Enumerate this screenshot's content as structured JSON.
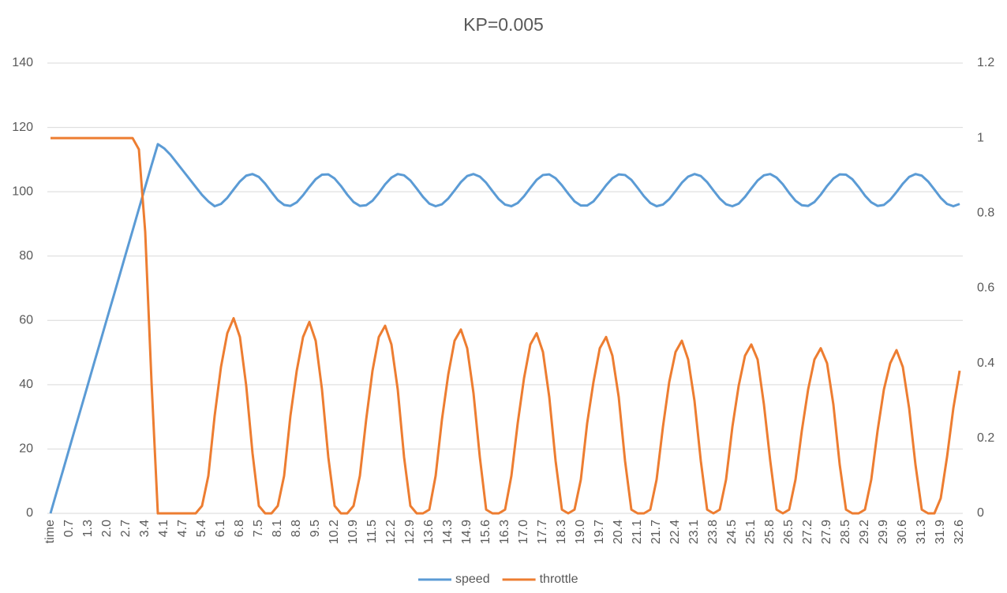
{
  "chart_data": {
    "type": "line",
    "title": "KP=0.005",
    "categories": [
      "time",
      null,
      null,
      "0.7",
      null,
      null,
      "1.3",
      null,
      null,
      "2.0",
      null,
      null,
      "2.7",
      null,
      null,
      "3.4",
      null,
      null,
      "4.1",
      null,
      null,
      "4.7",
      null,
      null,
      "5.4",
      null,
      null,
      "6.1",
      null,
      null,
      "6.8",
      null,
      null,
      "7.5",
      null,
      null,
      "8.1",
      null,
      null,
      "8.8",
      null,
      null,
      "9.5",
      null,
      null,
      "10.2",
      null,
      null,
      "10.9",
      null,
      null,
      "11.5",
      null,
      null,
      "12.2",
      null,
      null,
      "12.9",
      null,
      null,
      "13.6",
      null,
      null,
      "14.3",
      null,
      null,
      "14.9",
      null,
      null,
      "15.6",
      null,
      null,
      "16.3",
      null,
      null,
      "17.0",
      null,
      null,
      "17.7",
      null,
      null,
      "18.3",
      null,
      null,
      "19.0",
      null,
      null,
      "19.7",
      null,
      null,
      "20.4",
      null,
      null,
      "21.1",
      null,
      null,
      "21.7",
      null,
      null,
      "22.4",
      null,
      null,
      "23.1",
      null,
      null,
      "23.8",
      null,
      null,
      "24.5",
      null,
      null,
      "25.1",
      null,
      null,
      "25.8",
      null,
      null,
      "26.5",
      null,
      null,
      "27.2",
      null,
      null,
      "27.9",
      null,
      null,
      "28.5",
      null,
      null,
      "29.2",
      null,
      null,
      "29.9",
      null,
      null,
      "30.6",
      null,
      null,
      "31.3",
      null,
      null,
      "31.9",
      null,
      null,
      "32.6"
    ],
    "series": [
      {
        "name": "speed",
        "color": "#5b9bd5",
        "values": [
          0,
          6.8,
          13.5,
          20.3,
          27.1,
          33.8,
          40.6,
          47.4,
          54.1,
          60.9,
          67.6,
          74.4,
          81.2,
          87.9,
          94.7,
          101.5,
          108.2,
          114.8,
          113.5,
          111.5,
          109,
          106.5,
          104,
          101.5,
          99,
          97,
          95.5,
          96.2,
          98.1,
          100.7,
          103.2,
          105.0,
          105.5,
          104.6,
          102.5,
          99.9,
          97.4,
          95.9,
          95.6,
          96.7,
          98.9,
          101.5,
          103.9,
          105.3,
          105.4,
          104.1,
          101.8,
          99.1,
          96.8,
          95.6,
          95.8,
          97.2,
          99.6,
          102.3,
          104.4,
          105.5,
          105.1,
          103.5,
          101.0,
          98.4,
          96.3,
          95.5,
          96.1,
          97.9,
          100.4,
          103.0,
          104.9,
          105.5,
          104.7,
          102.8,
          100.2,
          97.7,
          96.0,
          95.5,
          96.5,
          98.6,
          101.2,
          103.7,
          105.2,
          105.4,
          104.2,
          102.0,
          99.4,
          97.0,
          95.7,
          95.7,
          97.0,
          99.4,
          102.0,
          104.2,
          105.4,
          105.2,
          103.7,
          101.2,
          98.6,
          96.5,
          95.5,
          96.0,
          97.7,
          100.2,
          102.8,
          104.7,
          105.5,
          104.9,
          103.0,
          100.4,
          97.9,
          96.1,
          95.5,
          96.3,
          98.4,
          101.0,
          103.5,
          105.1,
          105.5,
          104.4,
          102.3,
          99.6,
          97.2,
          95.8,
          95.6,
          96.8,
          99.1,
          101.8,
          104.1,
          105.4,
          105.3,
          103.9,
          101.5,
          98.8,
          96.7,
          95.6,
          95.9,
          97.5,
          99.9,
          102.5,
          104.6,
          105.5,
          105.0,
          103.2,
          100.7,
          98.1,
          96.2,
          95.5,
          96.2
        ]
      },
      {
        "name": "throttle",
        "color": "#ed7d31",
        "axis": "y2",
        "values": [
          1,
          1,
          1,
          1,
          1,
          1,
          1,
          1,
          1,
          1,
          1,
          1,
          1,
          1,
          0.97,
          0.75,
          0.35,
          0,
          0,
          0,
          0,
          0,
          0,
          0,
          0.02,
          0.1,
          0.26,
          0.39,
          0.48,
          0.52,
          0.47,
          0.34,
          0.16,
          0.02,
          0,
          0,
          0.02,
          0.1,
          0.26,
          0.38,
          0.47,
          0.51,
          0.46,
          0.33,
          0.15,
          0.02,
          0,
          0,
          0.02,
          0.1,
          0.25,
          0.38,
          0.47,
          0.5,
          0.45,
          0.33,
          0.15,
          0.02,
          0,
          0,
          0.01,
          0.1,
          0.25,
          0.37,
          0.46,
          0.49,
          0.44,
          0.32,
          0.15,
          0.01,
          0,
          0,
          0.01,
          0.1,
          0.24,
          0.36,
          0.45,
          0.48,
          0.43,
          0.31,
          0.14,
          0.01,
          0,
          0.01,
          0.09,
          0.24,
          0.35,
          0.44,
          0.47,
          0.42,
          0.31,
          0.14,
          0.01,
          0,
          0,
          0.01,
          0.09,
          0.23,
          0.35,
          0.43,
          0.46,
          0.41,
          0.3,
          0.14,
          0.01,
          0,
          0.01,
          0.09,
          0.23,
          0.34,
          0.42,
          0.45,
          0.41,
          0.29,
          0.14,
          0.01,
          0,
          0.01,
          0.09,
          0.22,
          0.33,
          0.41,
          0.44,
          0.4,
          0.29,
          0.13,
          0.01,
          0,
          0,
          0.01,
          0.09,
          0.22,
          0.33,
          0.4,
          0.435,
          0.39,
          0.28,
          0.13,
          0.01,
          0,
          0,
          0.04,
          0.15,
          0.28,
          0.38
        ]
      }
    ],
    "ylim": [
      0,
      140
    ],
    "yticks": [
      0,
      20,
      40,
      60,
      80,
      100,
      120,
      140
    ],
    "y2lim": [
      0,
      1.2
    ],
    "y2ticks": [
      0,
      0.2,
      0.4,
      0.6,
      0.8,
      1,
      1.2
    ],
    "grid": true,
    "legend": "bottom"
  }
}
